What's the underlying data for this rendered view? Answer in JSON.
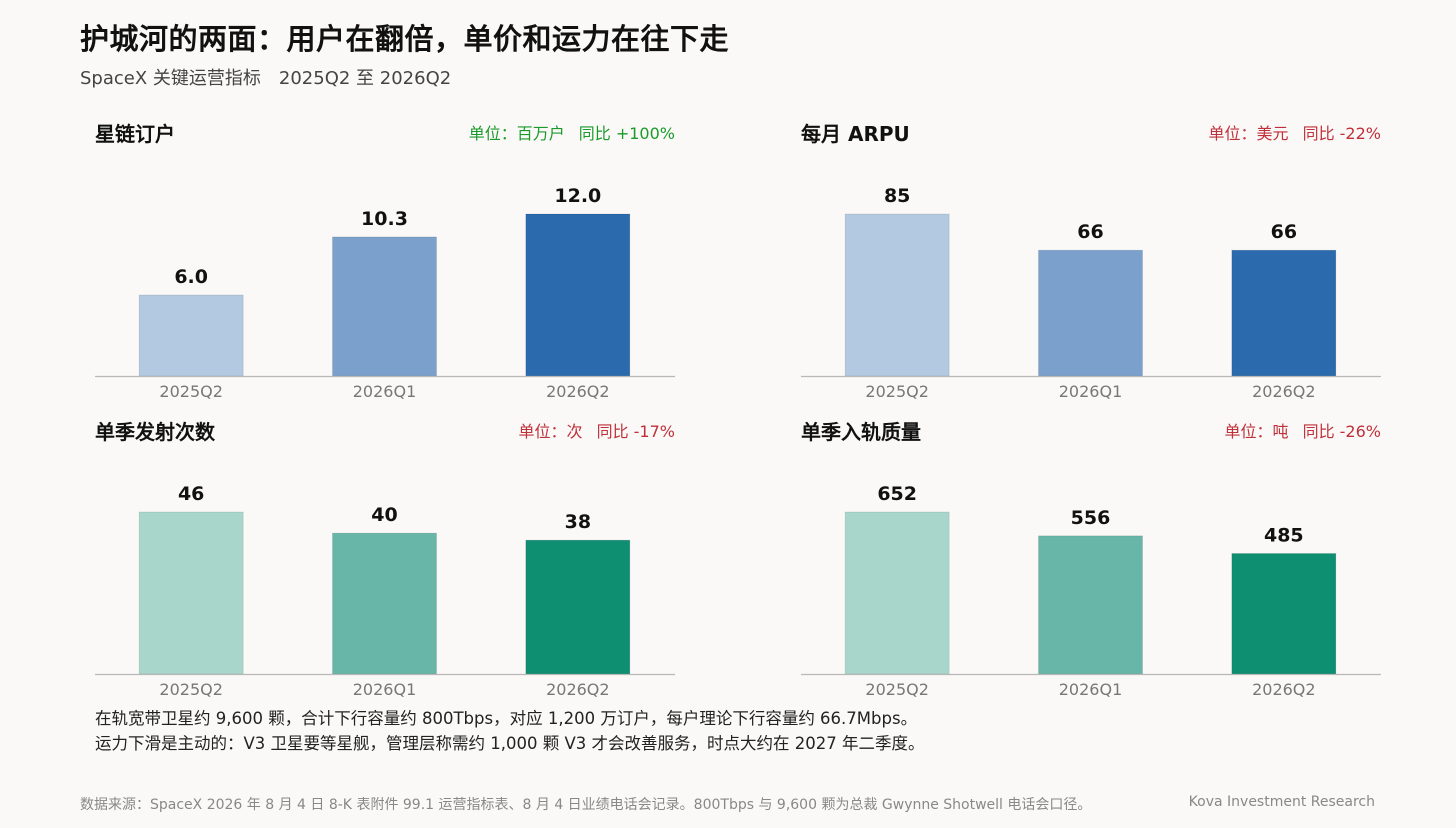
{
  "title": "护城河的两面：用户在翻倍，单价和运力在往下走",
  "subtitle": "SpaceX 关键运营指标　2025Q2 至 2026Q2",
  "chart_data": [
    {
      "type": "bar",
      "title": "星链订户",
      "unit_label": "单位：百万户",
      "yoy_label": "同比 +100%",
      "meta_color": "#1a9a2a",
      "categories": [
        "2025Q2",
        "2026Q1",
        "2026Q2"
      ],
      "values": [
        6.0,
        10.3,
        12.0
      ],
      "value_labels": [
        "6.0",
        "10.3",
        "12.0"
      ],
      "colors": [
        "#b3c9e2",
        "#7aa0cb",
        "#2a6aad"
      ],
      "ylim": [
        0,
        12.0
      ]
    },
    {
      "type": "bar",
      "title": "每月 ARPU",
      "unit_label": "单位：美元",
      "yoy_label": "同比 -22%",
      "meta_color": "#c0303a",
      "categories": [
        "2025Q2",
        "2026Q1",
        "2026Q2"
      ],
      "values": [
        85,
        66,
        66
      ],
      "value_labels": [
        "85",
        "66",
        "66"
      ],
      "colors": [
        "#b3c9e2",
        "#7aa0cb",
        "#2a6aad"
      ],
      "ylim": [
        0,
        85
      ]
    },
    {
      "type": "bar",
      "title": "单季发射次数",
      "unit_label": "单位：次",
      "yoy_label": "同比 -17%",
      "meta_color": "#c0303a",
      "categories": [
        "2025Q2",
        "2026Q1",
        "2026Q2"
      ],
      "values": [
        46,
        40,
        38
      ],
      "value_labels": [
        "46",
        "40",
        "38"
      ],
      "colors": [
        "#a9d6cb",
        "#67b6a7",
        "#0e8f72"
      ],
      "ylim": [
        0,
        46
      ]
    },
    {
      "type": "bar",
      "title": "单季入轨质量",
      "unit_label": "单位：吨",
      "yoy_label": "同比 -26%",
      "meta_color": "#c0303a",
      "categories": [
        "2025Q2",
        "2026Q1",
        "2026Q2"
      ],
      "values": [
        652,
        556,
        485
      ],
      "value_labels": [
        "652",
        "556",
        "485"
      ],
      "colors": [
        "#a9d6cb",
        "#67b6a7",
        "#0e8f72"
      ],
      "ylim": [
        0,
        652
      ]
    }
  ],
  "notes": [
    "在轨宽带卫星约 9,600 颗，合计下行容量约 800Tbps，对应 1,200 万订户，每户理论下行容量约 66.7Mbps。",
    "运力下滑是主动的：V3 卫星要等星舰，管理层称需约 1,000 颗 V3 才会改善服务，时点大约在 2027 年二季度。"
  ],
  "footer": {
    "source": "数据来源：SpaceX 2026 年 8 月 4 日 8-K 表附件 99.1 运营指标表、8 月 4 日业绩电话会记录。800Tbps 与 9,600 颗为总裁 Gwynne Shotwell 电话会口径。",
    "brand": "Kova Investment Research"
  }
}
